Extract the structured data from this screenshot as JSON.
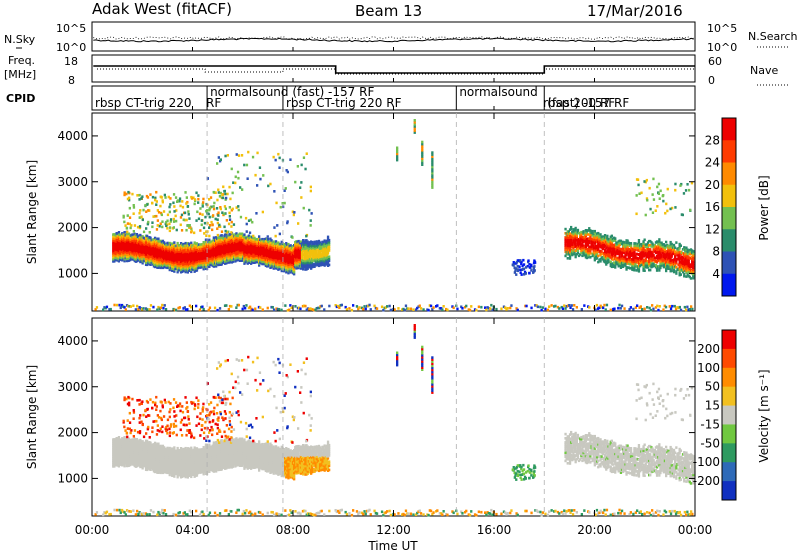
{
  "header": {
    "station": "Adak West (fitACF)",
    "beam": "Beam 13",
    "date": "17/Mar/2016"
  },
  "side_labels": {
    "nsky": "N.Sky",
    "freq_top": "Freq.",
    "freq_unit": "[MHz]",
    "cpid": "CPID",
    "nsearch": "N.Search",
    "nave": "Nave"
  },
  "cpid_segments": [
    {
      "label": "rbsp CT-trig 220",
      "start": 0.0,
      "end": 4.58
    },
    {
      "label": "normalsound (fast) -157 RF",
      "start": 4.58,
      "end": 7.6
    },
    {
      "label": "rbsp CT-trig 220 RF",
      "start": 7.6,
      "end": 14.5
    },
    {
      "label": "normalsound",
      "start": 14.5,
      "end": 18.0
    },
    {
      "label": "(fast) -157 RF",
      "start": 18.0,
      "end": 24.0
    }
  ],
  "cpid_extra": {
    "rf_label": "RF",
    "rbsp200_label": "rbsp 200 RF"
  },
  "x_axis": {
    "title": "Time UT",
    "ticks": [
      "00:00",
      "04:00",
      "08:00",
      "12:00",
      "16:00",
      "20:00",
      "00:00"
    ],
    "tick_values": [
      0,
      4,
      8,
      12,
      16,
      20,
      24
    ],
    "range": [
      0,
      24
    ]
  },
  "small_axes": {
    "nsky_ticks": [
      "10^5",
      "10^0"
    ],
    "nsearch_ticks": [
      "10^5",
      "10^0"
    ],
    "freq_ticks": [
      "18",
      "8"
    ],
    "nave_ticks": [
      "60",
      "0"
    ]
  },
  "chart_data": [
    {
      "type": "heatmap",
      "title": "",
      "ylabel": "Slant Range [km]",
      "xlabel": "",
      "ylim": [
        180,
        4500
      ],
      "yticks": [
        1000,
        2000,
        3000,
        4000
      ],
      "ytick_labels": [
        "1000",
        "2000",
        "3000",
        "4000"
      ],
      "colorbar": {
        "label": "Power [dB]",
        "ticks": [
          "4",
          "8",
          "12",
          "16",
          "20",
          "24",
          "28"
        ],
        "colors": [
          "#0018ee",
          "#2e52b5",
          "#2a8c6b",
          "#73c050",
          "#f2c00c",
          "#ff8a00",
          "#ff3b00",
          "#ee0000"
        ]
      },
      "scatter_regions": [
        {
          "name": "main-band",
          "x_range": [
            0.8,
            9.4
          ],
          "y_center": [
            1450,
            1650
          ],
          "value": "high"
        },
        {
          "name": "late-band",
          "x_range": [
            18.8,
            24.0
          ],
          "y_center": [
            1200,
            1700
          ],
          "value": "high"
        }
      ]
    },
    {
      "type": "heatmap",
      "title": "",
      "ylabel": "Slant Range [km]",
      "xlabel": "Time UT",
      "ylim": [
        180,
        4500
      ],
      "yticks": [
        1000,
        2000,
        3000,
        4000
      ],
      "ytick_labels": [
        "1000",
        "2000",
        "3000",
        "4000"
      ],
      "colorbar": {
        "label": "Velocity [m s⁻¹]",
        "ticks": [
          "200",
          "100",
          "50",
          "15",
          "-15",
          "-50",
          "-100",
          "-200"
        ],
        "colors": [
          "#1030c0",
          "#2e6ab8",
          "#2e9a60",
          "#70c840",
          "#c8c8c0",
          "#f2c020",
          "#ff8c00",
          "#ff4a00",
          "#ee0000"
        ]
      }
    }
  ],
  "colors": {
    "gridline": "#b0b0b0",
    "text": "#000000"
  }
}
